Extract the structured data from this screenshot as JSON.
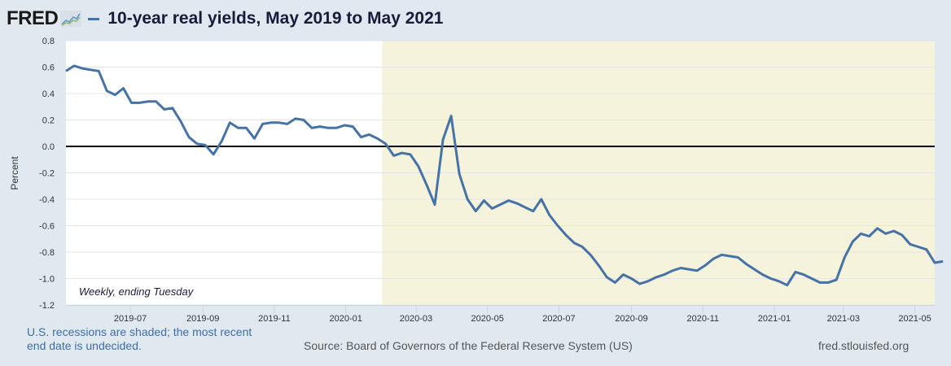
{
  "header": {
    "logo": "FRED",
    "title": "10-year real yields, May 2019 to May 2021"
  },
  "footer": {
    "recession_note": "U.S. recessions are shaded; the most recent end date is undecided.",
    "source": "Source: Board of Governors of the Federal Reserve System (US)",
    "url": "fred.stlouisfed.org"
  },
  "colors": {
    "series": "#4572a7",
    "recession_shade": "#f5f3dc",
    "background": "#e1e9f0",
    "plot_bg": "#ffffff"
  },
  "chart_data": {
    "type": "line",
    "title": "10-year real yields, May 2019 to May 2021",
    "xlabel": "",
    "ylabel": "Percent",
    "note": "Weekly, ending Tuesday",
    "ylim": [
      -1.2,
      0.8
    ],
    "yticks": [
      "0.8",
      "0.6",
      "0.4",
      "0.2",
      "0.0",
      "-0.2",
      "-0.4",
      "-0.6",
      "-0.8",
      "-1.0",
      "-1.2"
    ],
    "ytick_values": [
      0.8,
      0.6,
      0.4,
      0.2,
      0.0,
      -0.2,
      -0.4,
      -0.6,
      -0.8,
      -1.0,
      -1.2
    ],
    "xlim": [
      "2019-05-07",
      "2021-05-18"
    ],
    "xticks": [
      "2019-07",
      "2019-09",
      "2019-11",
      "2020-01",
      "2020-03",
      "2020-05",
      "2020-07",
      "2020-09",
      "2020-11",
      "2021-01",
      "2021-03",
      "2021-05"
    ],
    "grid": true,
    "zero_line": true,
    "recession": {
      "start": "2020-02-01",
      "end": "2021-05-18",
      "label": "U.S. recessions are shaded"
    },
    "series": [
      {
        "name": "10-year real yields",
        "start": "2019-05-07",
        "frequency": "weekly",
        "values": [
          0.57,
          0.61,
          0.59,
          0.58,
          0.57,
          0.42,
          0.39,
          0.44,
          0.33,
          0.33,
          0.34,
          0.34,
          0.28,
          0.29,
          0.19,
          0.07,
          0.02,
          0.01,
          -0.06,
          0.04,
          0.18,
          0.14,
          0.14,
          0.06,
          0.17,
          0.18,
          0.18,
          0.17,
          0.21,
          0.2,
          0.14,
          0.15,
          0.14,
          0.14,
          0.16,
          0.15,
          0.07,
          0.09,
          0.06,
          0.02,
          -0.07,
          -0.05,
          -0.06,
          -0.15,
          -0.29,
          -0.44,
          0.05,
          0.23,
          -0.21,
          -0.4,
          -0.49,
          -0.41,
          -0.47,
          -0.44,
          -0.41,
          -0.43,
          -0.46,
          -0.49,
          -0.4,
          -0.52,
          -0.6,
          -0.67,
          -0.73,
          -0.76,
          -0.82,
          -0.9,
          -0.99,
          -1.03,
          -0.97,
          -1.0,
          -1.04,
          -1.02,
          -0.99,
          -0.97,
          -0.94,
          -0.92,
          -0.93,
          -0.94,
          -0.9,
          -0.85,
          -0.82,
          -0.83,
          -0.84,
          -0.89,
          -0.93,
          -0.97,
          -1.0,
          -1.02,
          -1.05,
          -0.95,
          -0.97,
          -1.0,
          -1.03,
          -1.03,
          -1.01,
          -0.84,
          -0.72,
          -0.66,
          -0.68,
          -0.62,
          -0.66,
          -0.64,
          -0.67,
          -0.74,
          -0.76,
          -0.78,
          -0.88,
          -0.87
        ]
      }
    ]
  }
}
